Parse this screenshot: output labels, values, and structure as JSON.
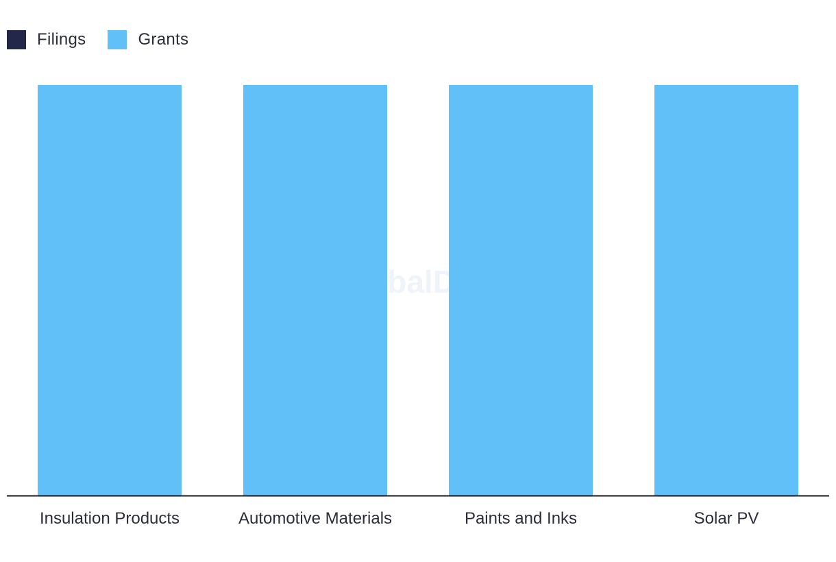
{
  "watermark": "GlobalData",
  "colors": {
    "filings": "#232849",
    "grants": "#62c0f8",
    "axis": "#1a1a1a",
    "watermark": "#eef4fa"
  },
  "legend": [
    {
      "label": "Filings",
      "color": "#232849"
    },
    {
      "label": "Grants",
      "color": "#62c0f8"
    }
  ],
  "chart_data": {
    "type": "bar",
    "categories": [
      "Insulation Products",
      "Automotive Materials",
      "Paints and Inks",
      "Solar PV"
    ],
    "series": [
      {
        "name": "Filings",
        "values": [
          0,
          0,
          0,
          0
        ]
      },
      {
        "name": "Grants",
        "values": [
          1,
          1,
          1,
          1
        ]
      }
    ],
    "ylim": [
      0,
      1
    ],
    "title": "",
    "xlabel": "",
    "ylabel": "",
    "grid": false,
    "legend_position": "top-left"
  }
}
